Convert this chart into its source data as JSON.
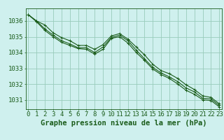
{
  "title": "Graphe pression niveau de la mer (hPa)",
  "background_color": "#cff0ee",
  "plot_bg_color": "#cff0ee",
  "grid_color": "#99ccbb",
  "line_color": "#1a5c1a",
  "x_ticks": [
    0,
    1,
    2,
    3,
    4,
    5,
    6,
    7,
    8,
    9,
    10,
    11,
    12,
    13,
    14,
    15,
    16,
    17,
    18,
    19,
    20,
    21,
    22,
    23
  ],
  "ylim": [
    1030.4,
    1036.8
  ],
  "xlim": [
    -0.3,
    23.3
  ],
  "series": [
    [
      1036.4,
      1036.0,
      1035.75,
      1035.25,
      1034.95,
      1034.75,
      1034.45,
      1034.45,
      1034.2,
      1034.5,
      1035.05,
      1035.2,
      1034.85,
      1034.35,
      1033.85,
      1033.25,
      1032.85,
      1032.65,
      1032.35,
      1031.95,
      1031.65,
      1031.25,
      1031.15,
      1030.75
    ],
    [
      1036.4,
      1036.0,
      1035.5,
      1035.1,
      1034.75,
      1034.55,
      1034.3,
      1034.3,
      1034.0,
      1034.35,
      1034.95,
      1035.1,
      1034.75,
      1034.15,
      1033.6,
      1033.05,
      1032.7,
      1032.45,
      1032.15,
      1031.75,
      1031.5,
      1031.1,
      1031.05,
      1030.65
    ],
    [
      1036.4,
      1035.95,
      1035.4,
      1035.0,
      1034.65,
      1034.45,
      1034.25,
      1034.2,
      1033.9,
      1034.2,
      1034.9,
      1035.0,
      1034.6,
      1034.0,
      1033.5,
      1032.95,
      1032.6,
      1032.35,
      1032.0,
      1031.6,
      1031.35,
      1031.0,
      1030.95,
      1030.55
    ]
  ],
  "y_ticks": [
    1031,
    1032,
    1033,
    1034,
    1035,
    1036
  ],
  "title_fontsize": 7.5,
  "tick_fontsize": 6.5
}
